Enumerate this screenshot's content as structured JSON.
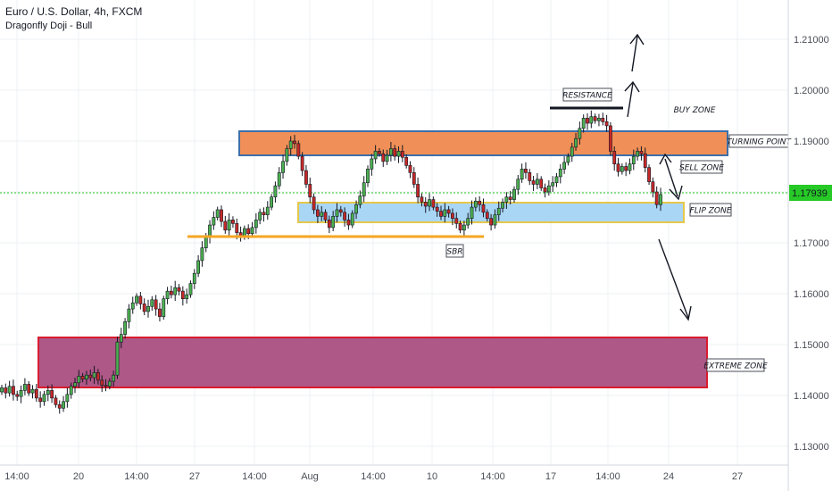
{
  "header": {
    "title": "Euro / U.S. Dollar, 4h, FXCM",
    "indicator": "Dragonfly Doji - Bull"
  },
  "colors": {
    "bull": "#26a69a",
    "bull_fill": "#4caf50",
    "bear": "#ef5350",
    "bear_fill": "#c62828",
    "grid": "#eef0f3",
    "current_line": "#26c926",
    "turning_fill": "#ef8a4f",
    "turning_stroke": "#3d6fa8",
    "flip_fill": "#a5d4f4",
    "flip_stroke": "#e6c84a",
    "extreme_fill": "#a94f7f",
    "extreme_stroke": "#d91b2e",
    "support_line": "#f5a623",
    "resistance_line": "#131722"
  },
  "price_scale": {
    "ticks": [
      "1.21000",
      "1.20000",
      "1.19000",
      "1.18000",
      "1.17000",
      "1.16000",
      "1.15000",
      "1.14000",
      "1.13000"
    ],
    "current_price": "1.17939"
  },
  "time_axis": {
    "labels": [
      "14:00",
      "20",
      "14:00",
      "27",
      "14:00",
      "Aug",
      "14:00",
      "10",
      "14:00",
      "17",
      "14:00",
      "24",
      "27"
    ]
  },
  "annotations": {
    "resistance": "RESISTANCE",
    "buy_zone": "BUY ZONE",
    "turning_point": "TURNING POINT",
    "sell_zone": "SELL ZONE",
    "flip_zone": "FLIP ZONE",
    "sbr": "SBR",
    "extreme_zone": "EXTREME ZONE"
  },
  "chart_data": {
    "type": "candlestick",
    "title": "Euro / U.S. Dollar, 4h, FXCM",
    "ylim": [
      1.125,
      1.218
    ],
    "y_ticks": [
      1.13,
      1.14,
      1.15,
      1.16,
      1.17,
      1.18,
      1.19,
      1.2,
      1.21
    ],
    "current_price": 1.17939,
    "zones": [
      {
        "label": "TURNING POINT",
        "from": 1.1868,
        "to": 1.1915
      },
      {
        "label": "FLIP ZONE",
        "from": 1.1738,
        "to": 1.1772
      },
      {
        "label": "EXTREME ZONE",
        "from": 1.1412,
        "to": 1.1508
      }
    ],
    "levels": [
      {
        "label": "RESISTANCE",
        "value": 1.196
      },
      {
        "label": "SBR",
        "value": 1.171
      }
    ],
    "closes": [
      1.1415,
      1.1405,
      1.1418,
      1.1402,
      1.1398,
      1.141,
      1.1422,
      1.1405,
      1.1412,
      1.1395,
      1.1388,
      1.1402,
      1.141,
      1.1395,
      1.1382,
      1.1375,
      1.1388,
      1.1402,
      1.1418,
      1.1425,
      1.1438,
      1.1432,
      1.144,
      1.1435,
      1.1445,
      1.143,
      1.142,
      1.1418,
      1.1428,
      1.144,
      1.1505,
      1.152,
      1.1545,
      1.157,
      1.1582,
      1.1595,
      1.158,
      1.1565,
      1.1575,
      1.1588,
      1.157,
      1.1555,
      1.159,
      1.1605,
      1.1598,
      1.1612,
      1.1605,
      1.159,
      1.1598,
      1.162,
      1.164,
      1.1665,
      1.169,
      1.1712,
      1.1735,
      1.175,
      1.1765,
      1.1742,
      1.1725,
      1.1745,
      1.1738,
      1.172,
      1.1712,
      1.1728,
      1.1718,
      1.173,
      1.1745,
      1.176,
      1.1755,
      1.177,
      1.179,
      1.1812,
      1.1838,
      1.186,
      1.1885,
      1.19,
      1.1895,
      1.187,
      1.1842,
      1.1815,
      1.179,
      1.1765,
      1.1752,
      1.176,
      1.1745,
      1.173,
      1.1752,
      1.1765,
      1.176,
      1.1745,
      1.1735,
      1.1758,
      1.1775,
      1.1792,
      1.1818,
      1.1845,
      1.1865,
      1.188,
      1.1875,
      1.186,
      1.1872,
      1.1885,
      1.187,
      1.188,
      1.1868,
      1.1852,
      1.1838,
      1.1815,
      1.179,
      1.178,
      1.1772,
      1.1785,
      1.177,
      1.1762,
      1.1752,
      1.1765,
      1.1758,
      1.1748,
      1.1738,
      1.1725,
      1.1735,
      1.1748,
      1.177,
      1.1782,
      1.1775,
      1.176,
      1.1748,
      1.1735,
      1.1755,
      1.1768,
      1.178,
      1.179,
      1.1785,
      1.1805,
      1.1825,
      1.1845,
      1.1838,
      1.1822,
      1.1815,
      1.1825,
      1.1808,
      1.18,
      1.1812,
      1.1818,
      1.183,
      1.1845,
      1.1858,
      1.187,
      1.1888,
      1.1905,
      1.1925,
      1.1945,
      1.1935,
      1.1948,
      1.194,
      1.1945,
      1.1938,
      1.193,
      1.188,
      1.1855,
      1.184,
      1.185,
      1.1842,
      1.1855,
      1.187,
      1.188,
      1.1875,
      1.1848,
      1.182,
      1.18,
      1.1775,
      1.1795
    ]
  }
}
